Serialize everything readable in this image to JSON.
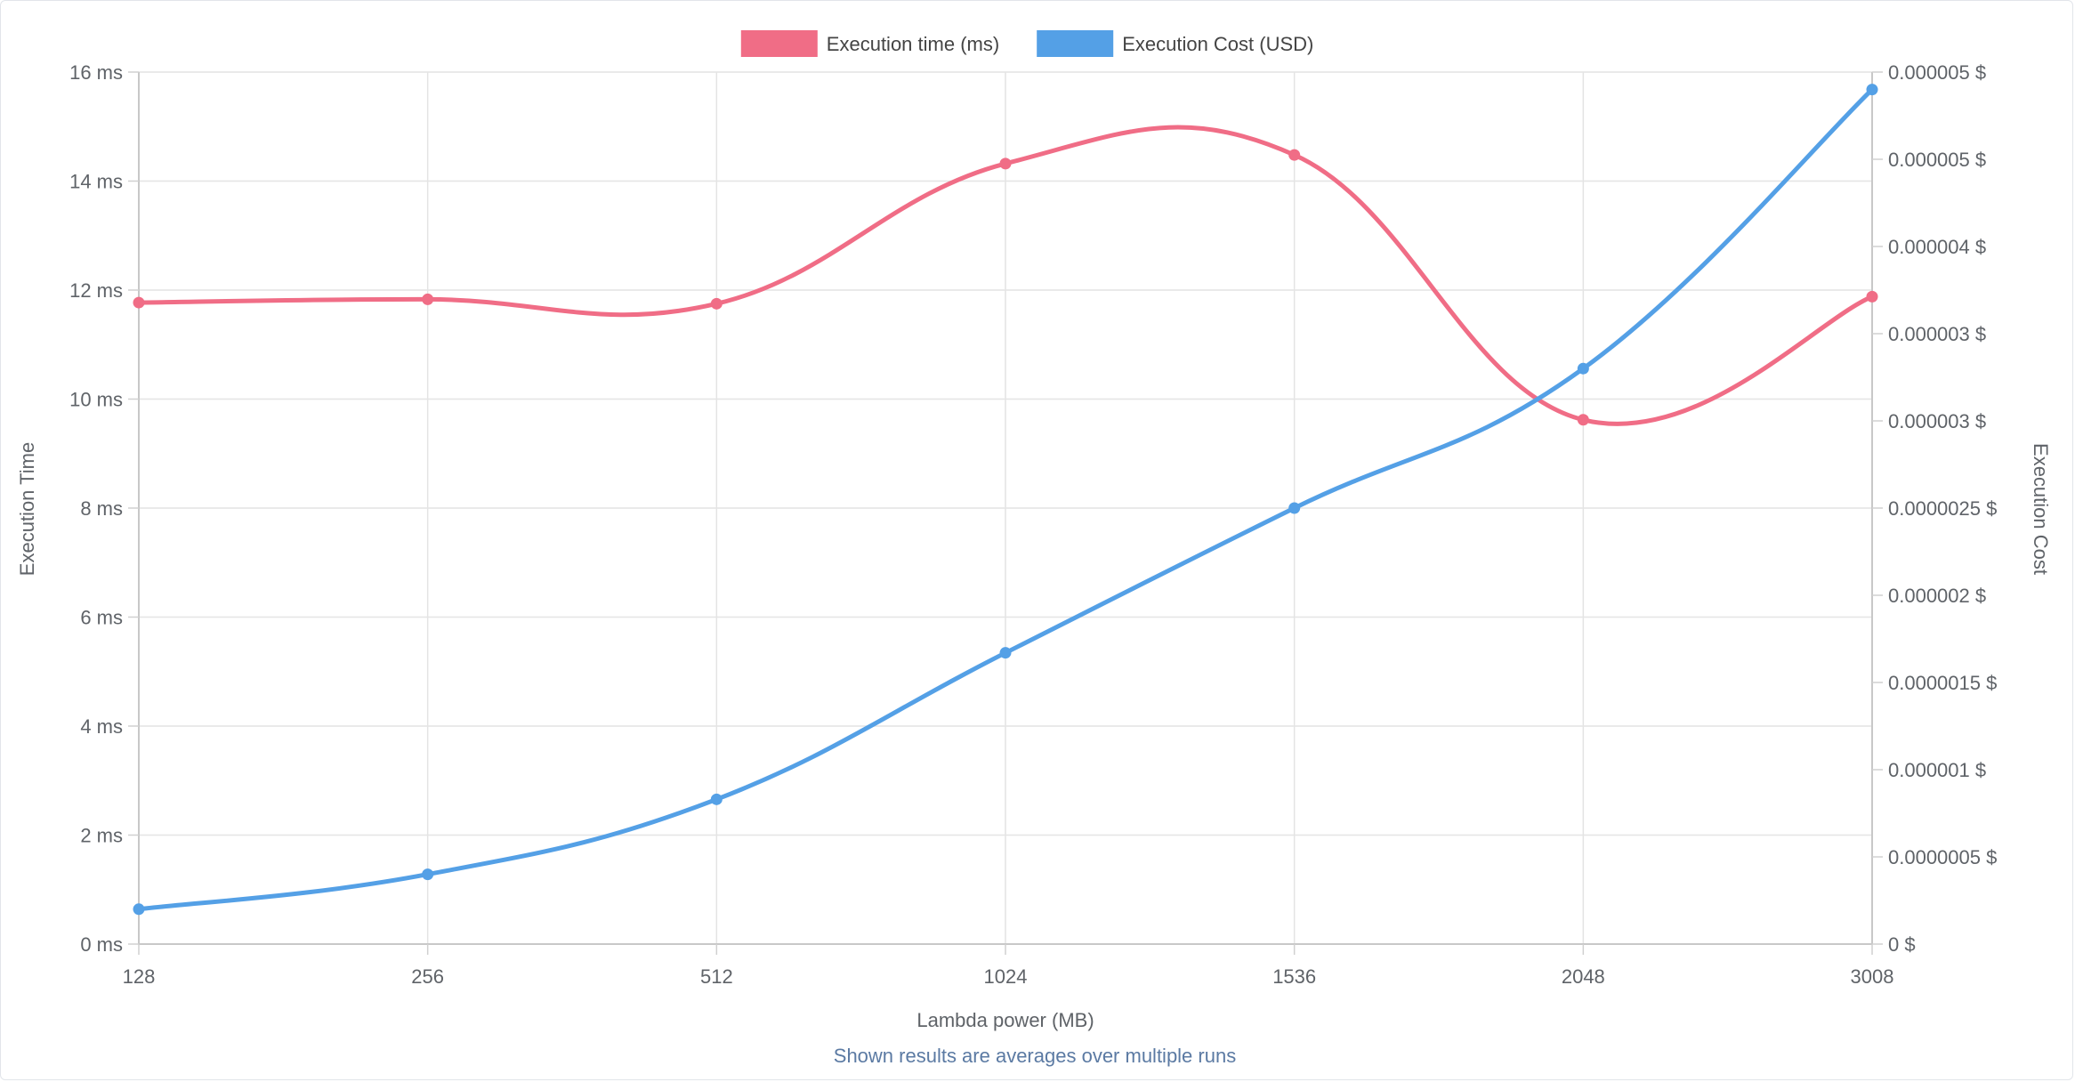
{
  "chart_data": {
    "type": "line",
    "categories": [
      "128",
      "256",
      "512",
      "1024",
      "1536",
      "2048",
      "3008"
    ],
    "series": [
      {
        "name": "Execution time (ms)",
        "axis": "left",
        "color": "#f06d86",
        "values": [
          11.77,
          11.83,
          11.75,
          14.32,
          14.48,
          9.62,
          11.88
        ]
      },
      {
        "name": "Execution Cost (USD)",
        "axis": "right",
        "color": "#54a0e6",
        "values": [
          2e-07,
          4e-07,
          8.3e-07,
          1.67e-06,
          2.5e-06,
          3.3e-06,
          4.9e-06
        ]
      }
    ],
    "xlabel": "Lambda power (MB)",
    "ylabel_left": "Execution Time",
    "ylabel_right": "Execution Cost",
    "ylim_left": [
      0,
      16
    ],
    "ylim_right": [
      0,
      5e-06
    ],
    "left_ticks": [
      "0 ms",
      "2 ms",
      "4 ms",
      "6 ms",
      "8 ms",
      "10 ms",
      "12 ms",
      "14 ms",
      "16 ms"
    ],
    "right_ticks": [
      "0 $",
      "0.0000005 $",
      "0.000001 $",
      "0.0000015 $",
      "0.000002 $",
      "0.0000025 $",
      "0.000003 $",
      "0.000003 $",
      "0.000004 $",
      "0.000005 $",
      "0.000005 $"
    ],
    "legend_position": "top-center",
    "grid": true
  },
  "footer": {
    "note": "Shown results are averages over multiple runs"
  }
}
